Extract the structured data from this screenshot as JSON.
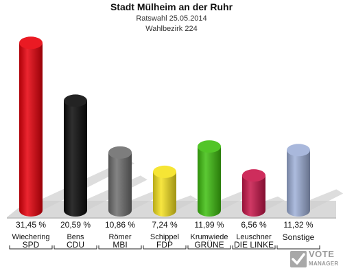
{
  "header": {
    "title": "Stadt Mülheim an der Ruhr",
    "subtitle": "Ratswahl 25.05.2014",
    "subtitle2": "Wahlbezirk 224"
  },
  "logo": {
    "line1": "VOTE",
    "line2": "MANAGER"
  },
  "chart_data": {
    "type": "bar",
    "title": "Stadt Mülheim an der Ruhr",
    "categories": [
      "SPD",
      "CDU",
      "MBI",
      "FDP",
      "GRÜNE",
      "DIE LINKE",
      "Sonstige"
    ],
    "candidates": [
      "Wiechering",
      "Bens",
      "Römer",
      "Schippel",
      "Krumwiede",
      "Leuschner",
      ""
    ],
    "values": [
      31.45,
      20.59,
      10.86,
      7.24,
      11.99,
      6.56,
      11.32
    ],
    "value_labels": [
      "31,45 %",
      "20,59 %",
      "10,86 %",
      "7,24 %",
      "11,99 %",
      "6,56 %",
      "11,32 %"
    ],
    "colors": [
      "#e8000b",
      "#0a0a0a",
      "#6e6e6e",
      "#f5e21f",
      "#3fbf10",
      "#c8164a",
      "#9fb0d8"
    ],
    "ylabel": "",
    "xlabel": "",
    "grid": false
  }
}
